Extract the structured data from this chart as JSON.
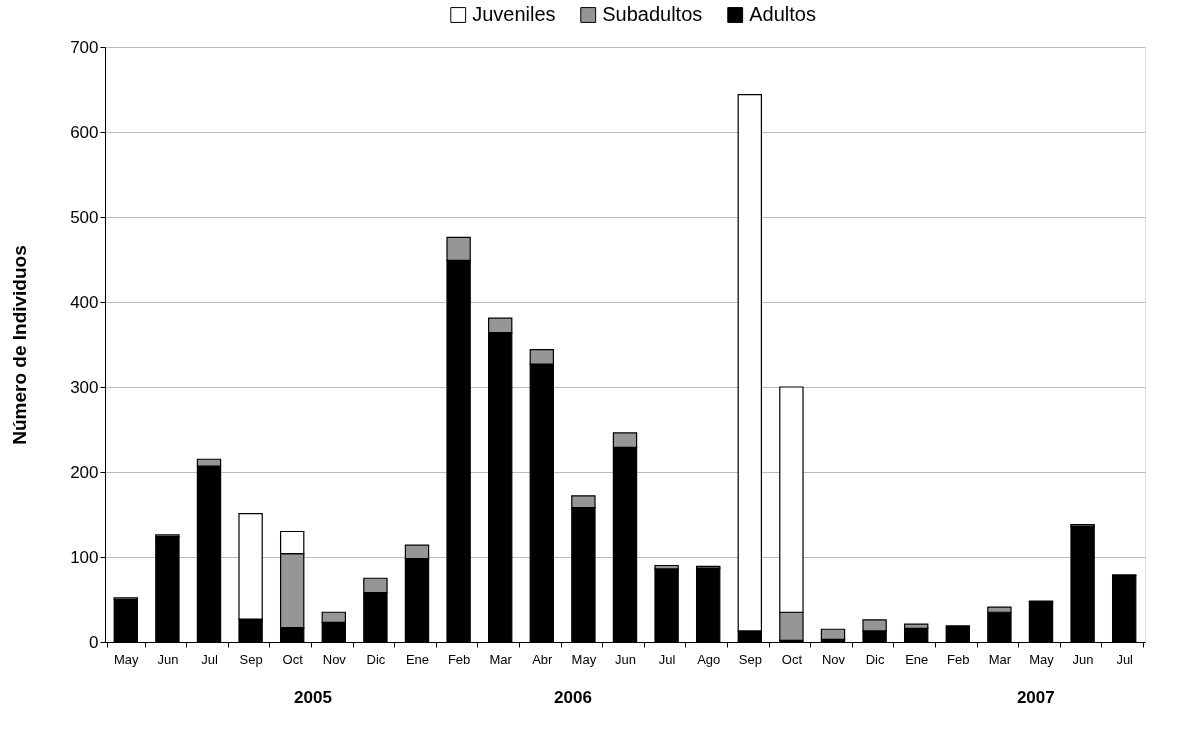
{
  "chart_data": {
    "type": "bar",
    "stacked": true,
    "categories": [
      "May",
      "Jun",
      "Jul",
      "Sep",
      "Oct",
      "Nov",
      "Dic",
      "Ene",
      "Feb",
      "Mar",
      "Abr",
      "May",
      "Jun",
      "Jul",
      "Ago",
      "Sep",
      "Oct",
      "Nov",
      "Dic",
      "Ene",
      "Feb",
      "Mar",
      "May",
      "Jun",
      "Jul"
    ],
    "series": [
      {
        "name": "Adultos",
        "color": "#000000",
        "values": [
          50,
          124,
          207,
          27,
          17,
          23,
          58,
          98,
          449,
          364,
          327,
          158,
          229,
          86,
          87,
          13,
          2,
          3,
          13,
          16,
          19,
          35,
          47,
          136,
          78
        ]
      },
      {
        "name": "Subadultos",
        "color": "#969696",
        "values": [
          2,
          2,
          8,
          null,
          87,
          12,
          17,
          16,
          27,
          17,
          17,
          14,
          17,
          4,
          2,
          null,
          33,
          12,
          13,
          5,
          null,
          6,
          1,
          2,
          1
        ]
      },
      {
        "name": "Juveniles",
        "color": "#ffffff",
        "values": [
          null,
          null,
          null,
          124,
          26,
          null,
          null,
          null,
          null,
          null,
          null,
          null,
          null,
          null,
          null,
          631,
          265,
          null,
          null,
          null,
          null,
          null,
          null,
          null,
          null
        ]
      }
    ],
    "ylabel": "Número de Individuos",
    "ylim": [
      0,
      700
    ],
    "yticks": [
      0,
      100,
      200,
      300,
      400,
      500,
      600,
      700
    ],
    "grid": "y",
    "legend": "top",
    "annotations": [
      "2005",
      "2006",
      "2007"
    ]
  }
}
